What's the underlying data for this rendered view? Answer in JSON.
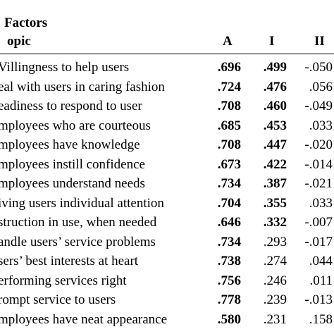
{
  "table": {
    "title": "Factors",
    "columns": {
      "topic": "opic",
      "a": "A",
      "i": "I",
      "ii": "II"
    },
    "rows": [
      {
        "label": "Villingness to help users",
        "a": ".696",
        "i": ".499",
        "ii": "-.050",
        "i_bold": true
      },
      {
        "label": "eal with users in caring fashion",
        "a": ".724",
        "i": ".476",
        "ii": ".056",
        "i_bold": true
      },
      {
        "label": "eadiness to respond to user",
        "a": ".708",
        "i": ".460",
        "ii": "-.049",
        "i_bold": true
      },
      {
        "label": "mployees who are courteous",
        "a": ".685",
        "i": ".453",
        "ii": ".033",
        "i_bold": true
      },
      {
        "label": "mployees have knowledge",
        "a": ".708",
        "i": ".447",
        "ii": "-.020",
        "i_bold": true
      },
      {
        "label": "mployees instill confidence",
        "a": ".673",
        "i": ".422",
        "ii": "-.014",
        "i_bold": true
      },
      {
        "label": "mployees understand needs",
        "a": ".734",
        "i": ".387",
        "ii": "-.021",
        "i_bold": true
      },
      {
        "label": "iving users individual attention",
        "a": ".704",
        "i": ".355",
        "ii": ".033",
        "i_bold": true
      },
      {
        "label": "struction in use, when needed",
        "a": ".646",
        "i": ".332",
        "ii": "-.007",
        "i_bold": true
      },
      {
        "label": "andle users’ service problems",
        "a": ".734",
        "i": ".293",
        "ii": "-.017",
        "i_bold": false
      },
      {
        "label": "sers’ best interests at heart",
        "a": ".738",
        "i": ".274",
        "ii": ".044",
        "i_bold": false
      },
      {
        "label": "erforming services right",
        "a": ".756",
        "i": ".246",
        "ii": ".011",
        "i_bold": false
      },
      {
        "label": "rompt service to users",
        "a": ".778",
        "i": ".239",
        "ii": "-.013",
        "i_bold": false
      },
      {
        "label": "mployees have neat appearance",
        "a": ".580",
        "i": ".231",
        "ii": ".158",
        "i_bold": false
      }
    ]
  }
}
